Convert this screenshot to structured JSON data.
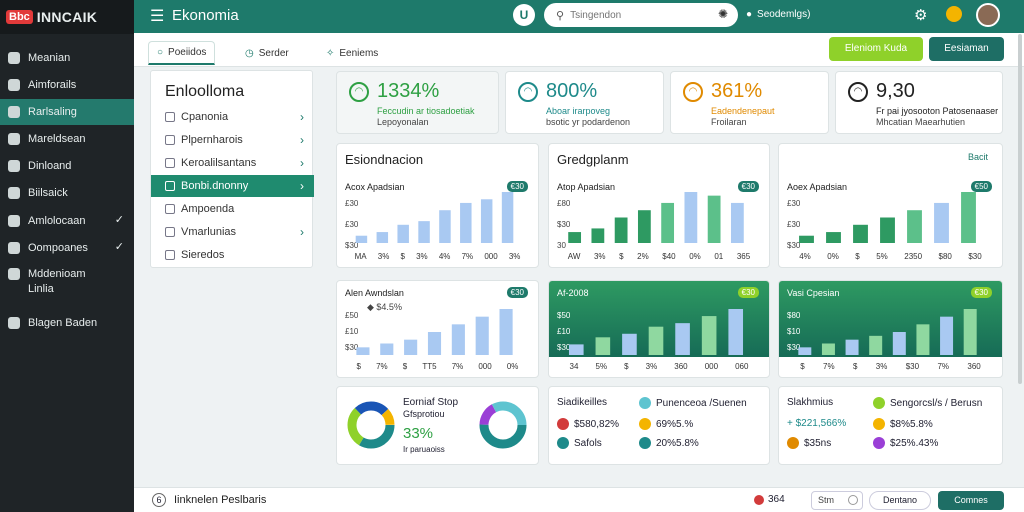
{
  "brand": {
    "badge": "Bbc",
    "name": "INNCAIK"
  },
  "sidebar": {
    "items": [
      {
        "label": "Meanian",
        "icon": "globe-icon",
        "check": false
      },
      {
        "label": "Aimforails",
        "icon": "people-icon",
        "check": false
      },
      {
        "label": "Rarlsaling",
        "icon": "chart-icon",
        "check": false,
        "active": true
      },
      {
        "label": "Mareldsean",
        "icon": "grid-icon",
        "check": false
      },
      {
        "label": "Dinloand",
        "icon": "box-icon",
        "check": false
      },
      {
        "label": "Biilsaick",
        "icon": "doc-icon",
        "check": false
      },
      {
        "label": "Amlolocaan",
        "icon": "list-icon",
        "check": true
      },
      {
        "label": "Oompoanes",
        "icon": "gear-icon",
        "check": true
      },
      {
        "label": "Mddenioam",
        "label2": "Linlia",
        "icon": "gear-icon",
        "check": false
      },
      {
        "label": "Blagen Baden",
        "icon": "help-icon",
        "check": false
      }
    ]
  },
  "header": {
    "title": "Ekonomia",
    "round_label": "U",
    "search_placeholder": "Tsingendon",
    "settings_label": "Seodemlgs)"
  },
  "tabs": [
    {
      "label": "Poeiidos",
      "active": true
    },
    {
      "label": "Serder",
      "active": false
    },
    {
      "label": "Eeniems",
      "active": false
    }
  ],
  "actions": {
    "primary": "Eleniom Kuda",
    "secondary": "Eesiaman"
  },
  "menu": {
    "title": "Enloolloma",
    "items": [
      {
        "label": "Cpanonia",
        "chev": true
      },
      {
        "label": "Plpernharois",
        "chev": true
      },
      {
        "label": "Keroalilsantans",
        "chev": true
      },
      {
        "label": "Bonbi.dnonny",
        "chev": true,
        "active": true
      },
      {
        "label": "Ampoenda",
        "chev": false
      },
      {
        "label": "Vmarlunias",
        "chev": true
      },
      {
        "label": "Sieredos",
        "chev": false
      }
    ]
  },
  "kpis": [
    {
      "value": "1334%",
      "l1": "Feccudin ar tiosadoetiak",
      "l2": "Lepoyonalan",
      "color": "#2ea043"
    },
    {
      "value": "800%",
      "l1": "Aboar irarpoveg",
      "l2": "bsotic yr podardenon",
      "color": "#1e8a8a"
    },
    {
      "value": "361%",
      "l1": "Eadendenepaut",
      "l2": "Froilaran",
      "color": "#e08a00"
    },
    {
      "value": "9,30",
      "l1": "Fr pai jyosooton Patosenaaser",
      "l2": "Mhcatian Maearhutien",
      "color": "#222222"
    }
  ],
  "charts": [
    {
      "title": "Esiondnacion",
      "subtitle": "Acox Apadsian",
      "badge": "€30",
      "yticks": [
        "£30",
        "£30",
        "$30"
      ],
      "xlabels": [
        "MA",
        "3%",
        "$",
        "3%",
        "4%",
        "7%",
        "000",
        "3%"
      ],
      "values": [
        2,
        3,
        5,
        6,
        9,
        11,
        12,
        14
      ],
      "style": "light"
    },
    {
      "title": "Gredgplanm",
      "subtitle": "Atop Apadsian",
      "badge": "€30",
      "yticks": [
        "£80",
        "$30",
        "30"
      ],
      "xlabels": [
        "AW",
        "3%",
        "$",
        "2%",
        "$40",
        "0%",
        "01",
        "365"
      ],
      "values": [
        3,
        4,
        7,
        9,
        11,
        14,
        13,
        11
      ],
      "style": "mixed"
    },
    {
      "title": "",
      "subtitle": "Aoex Apadsian",
      "badge": "€50",
      "yticks": [
        "£30",
        "£30",
        "$30"
      ],
      "xlabels": [
        "4%",
        "0%",
        "$",
        "5%",
        "2350",
        "$80",
        "$30"
      ],
      "values": [
        2,
        3,
        5,
        7,
        9,
        11,
        14
      ],
      "style": "mixed",
      "corner": "Bacit"
    },
    {
      "title": "",
      "subtitle": "Alen Awndslan",
      "badge": "€30",
      "extra": "◆ $4.5%",
      "yticks": [
        "£50",
        "£10",
        "$30"
      ],
      "xlabels": [
        "$",
        "7%",
        "$",
        "TT5",
        "7%",
        "000",
        "0%"
      ],
      "values": [
        2,
        3,
        4,
        6,
        8,
        10,
        12
      ],
      "style": "light"
    },
    {
      "title": "",
      "subtitle": "Af-2008",
      "badge": "€30",
      "yticks": [
        "$50",
        "£10",
        "$30"
      ],
      "xlabels": [
        "34",
        "5%",
        "$",
        "3%",
        "360",
        "000",
        "060"
      ],
      "values": [
        3,
        5,
        6,
        8,
        9,
        11,
        13
      ],
      "style": "dark"
    },
    {
      "title": "",
      "subtitle": "Vasi Cpesian",
      "badge": "€30",
      "yticks": [
        "$80",
        "$10",
        "$30"
      ],
      "xlabels": [
        "$",
        "7%",
        "$",
        "3%",
        "$30",
        "7%",
        "360"
      ],
      "values": [
        2,
        3,
        4,
        5,
        6,
        8,
        10,
        12
      ],
      "style": "dark"
    }
  ],
  "donut_card": {
    "title": "Eorniaf Stop",
    "subtitle": "Gfsprotiou",
    "value": "33%",
    "caption": "Ir paruaoiss"
  },
  "legend_a": {
    "title": "Siadikeilles",
    "r1": "$580,82%",
    "r2": "Safols",
    "s1": "Punenceoa /Suenen",
    "s2": "69%5.%",
    "s3": "20%5.8%"
  },
  "legend_b": {
    "title": "Slakhmius",
    "r1": "+ $221,566%",
    "r2": "$35ns",
    "s1": "Sengorcsl/s / Berusn",
    "s2": "$8%5.8%",
    "s3": "$25%.43%"
  },
  "footer": {
    "text": "Iinknelen Peslbaris",
    "count": "364",
    "stm": "Stm",
    "btn1": "Dentano",
    "btn2": "Comnes"
  }
}
